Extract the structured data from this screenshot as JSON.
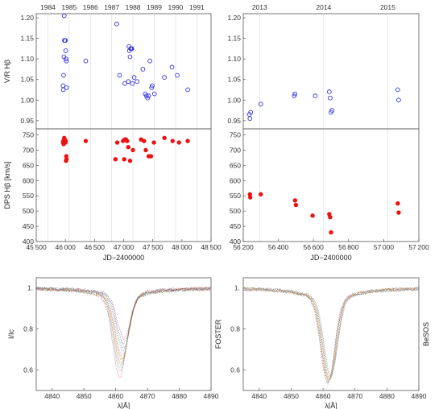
{
  "chart_data": [
    {
      "type": "scatter",
      "panel": "top-left",
      "ylabel": "V/R Hβ",
      "xlim": [
        45500,
        48500
      ],
      "ylim": [
        0.93,
        1.21
      ],
      "yticks": [
        0.95,
        1.0,
        1.05,
        1.1,
        1.15,
        1.2
      ],
      "year_ticks": [
        {
          "label": "1984",
          "jd": 45700
        },
        {
          "label": "1985",
          "jd": 46065
        },
        {
          "label": "1986",
          "jd": 46430
        },
        {
          "label": "1987",
          "jd": 46795
        },
        {
          "label": "1988",
          "jd": 47160
        },
        {
          "label": "1989",
          "jd": 47526
        },
        {
          "label": "1990",
          "jd": 47891
        },
        {
          "label": "1991",
          "jd": 48256
        }
      ],
      "marker": "open-circle",
      "color": "#3333dd",
      "x": [
        45960,
        45965,
        45970,
        45975,
        45980,
        45985,
        45990,
        45995,
        46000,
        46005,
        46010,
        46015,
        46020,
        46350,
        46880,
        46930,
        47020,
        47080,
        47090,
        47100,
        47110,
        47120,
        47130,
        47140,
        47150,
        47180,
        47230,
        47330,
        47370,
        47390,
        47410,
        47430,
        47450,
        47480,
        47490,
        47530,
        47700,
        47830,
        47920,
        48100
      ],
      "y": [
        1.035,
        1.025,
        1.06,
        1.105,
        1.205,
        1.145,
        1.145,
        1.145,
        1.145,
        1.12,
        1.1,
        1.095,
        1.03,
        1.095,
        1.185,
        1.06,
        1.04,
        1.045,
        1.13,
        1.12,
        1.105,
        1.125,
        1.125,
        1.125,
        1.04,
        1.055,
        1.045,
        1.075,
        1.015,
        1.01,
        1.005,
        1.01,
        1.095,
        1.03,
        1.035,
        1.015,
        1.055,
        1.08,
        1.06,
        1.025
      ]
    },
    {
      "type": "scatter",
      "panel": "top-right",
      "xlim": [
        56200,
        57200
      ],
      "ylim": [
        0.93,
        1.21
      ],
      "yticks": [
        0.95,
        1.0,
        1.05,
        1.1,
        1.15,
        1.2
      ],
      "year_ticks": [
        {
          "label": "2013",
          "jd": 56293
        },
        {
          "label": "2014",
          "jd": 56658
        },
        {
          "label": "2015",
          "jd": 57023
        }
      ],
      "marker": "open-circle",
      "color": "#3333dd",
      "x": [
        56235,
        56238,
        56242,
        56300,
        56490,
        56495,
        56610,
        56690,
        56695,
        56700,
        56705,
        57080,
        57085
      ],
      "y": [
        0.965,
        0.955,
        0.97,
        0.99,
        1.01,
        1.015,
        1.01,
        1.02,
        1.005,
        0.97,
        0.975,
        1.025,
        1.0
      ]
    },
    {
      "type": "scatter",
      "panel": "middle-left",
      "ylabel": "DPS Hβ [km/s]",
      "xlabel": "JD−2400000",
      "xlim": [
        45500,
        48500
      ],
      "ylim": [
        400,
        770
      ],
      "yticks": [
        400,
        450,
        500,
        550,
        600,
        650,
        700,
        750
      ],
      "xticks": [
        45500,
        46000,
        46500,
        47000,
        47500,
        48000,
        48500
      ],
      "marker": "filled-circle",
      "color": "#ee1111",
      "x": [
        45960,
        45965,
        45970,
        45975,
        45980,
        45985,
        45990,
        45995,
        46000,
        46005,
        46010,
        46015,
        46020,
        46350,
        46860,
        46890,
        46990,
        47010,
        47020,
        47040,
        47060,
        47080,
        47110,
        47160,
        47300,
        47350,
        47380,
        47430,
        47470,
        47520,
        47700,
        47840,
        47950,
        48100
      ],
      "y": [
        725,
        730,
        720,
        730,
        740,
        735,
        735,
        725,
        725,
        730,
        665,
        680,
        670,
        730,
        670,
        725,
        730,
        670,
        735,
        735,
        730,
        710,
        665,
        700,
        735,
        730,
        700,
        680,
        680,
        725,
        740,
        730,
        725,
        730
      ]
    },
    {
      "type": "scatter",
      "panel": "middle-right",
      "xlabel": "JD−2400000",
      "xlim": [
        56200,
        57200
      ],
      "ylim": [
        400,
        770
      ],
      "yticks": [
        400,
        450,
        500,
        550,
        600,
        650,
        700,
        750
      ],
      "xticks": [
        56200,
        56400,
        56600,
        56800,
        57000,
        57200
      ],
      "marker": "filled-circle",
      "color": "#ee1111",
      "x": [
        56238,
        56240,
        56300,
        56495,
        56500,
        56595,
        56690,
        56695,
        56700,
        57080,
        57085
      ],
      "y": [
        555,
        545,
        555,
        535,
        520,
        485,
        490,
        480,
        430,
        525,
        495
      ]
    },
    {
      "type": "line",
      "panel": "bottom-left",
      "ylabel": "I/Ic",
      "xlabel": "λ[Å]",
      "side_label": "FOSTER",
      "xlim": [
        4835,
        4890
      ],
      "ylim": [
        0.5,
        1.05
      ],
      "xticks": [
        4840,
        4850,
        4860,
        4870,
        4880,
        4890
      ],
      "yticks": [
        0.6,
        0.8,
        1.0
      ],
      "ytick_labels": [
        "0.6",
        "0.8",
        "1."
      ],
      "profile_center": 4862,
      "minima": [
        0.63,
        0.65,
        0.67,
        0.68,
        0.69,
        0.7,
        0.71,
        0.72,
        0.74,
        0.75,
        0.77,
        0.79
      ],
      "colors": [
        "#e41a1c",
        "#377eb8",
        "#4daf4a",
        "#984ea3",
        "#ff7f00",
        "#a6a600",
        "#a65628",
        "#f781bf",
        "#17becf",
        "#7f7f7f",
        "#1f3f9f",
        "#d62728"
      ]
    },
    {
      "type": "line",
      "panel": "bottom-right",
      "xlabel": "λ[Å]",
      "side_label": "BeSOS",
      "xlim": [
        4835,
        4890
      ],
      "ylim": [
        0.5,
        1.05
      ],
      "xticks": [
        4840,
        4850,
        4860,
        4870,
        4880,
        4890
      ],
      "yticks": [
        0.6,
        0.8,
        1.0
      ],
      "ytick_labels": [
        "0.6",
        "0.8",
        "1."
      ],
      "profile_center": 4862,
      "minima": [
        0.6,
        0.605,
        0.61,
        0.612,
        0.615,
        0.618,
        0.62,
        0.625,
        0.63,
        0.635
      ],
      "colors": [
        "#e41a1c",
        "#377eb8",
        "#4daf4a",
        "#984ea3",
        "#ff7f00",
        "#a6a600",
        "#a65628",
        "#f781bf",
        "#17becf",
        "#7f7f7f"
      ]
    }
  ]
}
